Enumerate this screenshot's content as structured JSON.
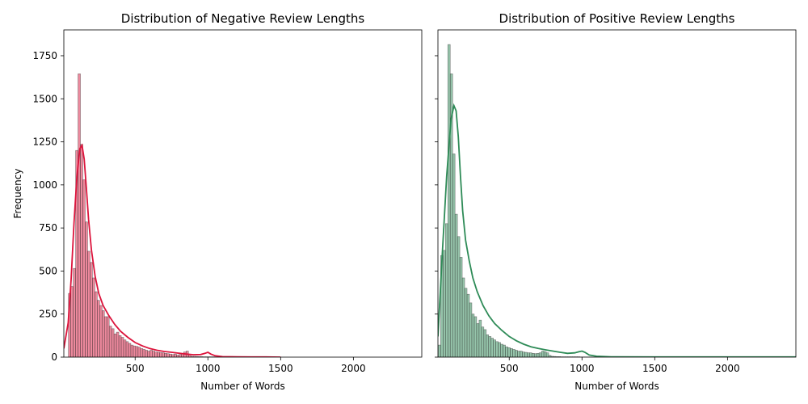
{
  "chart_data": [
    {
      "type": "bar",
      "title": "Distribution of Negative Review Lengths",
      "xlabel": "Number of Words",
      "ylabel": "Frequency",
      "xlim": [
        10,
        2470
      ],
      "ylim": [
        0,
        1900
      ],
      "xticks": [
        500,
        1000,
        1500,
        2000
      ],
      "yticks": [
        0,
        250,
        500,
        750,
        1000,
        1250,
        1500,
        1750
      ],
      "bar_color": "#dc143c",
      "kde_color": "#dc143c",
      "bin_width": 16.5,
      "bins_start": 25,
      "values": [
        0,
        370,
        410,
        515,
        1200,
        1645,
        1235,
        1030,
        785,
        615,
        550,
        460,
        380,
        330,
        300,
        270,
        235,
        235,
        180,
        165,
        135,
        145,
        125,
        115,
        100,
        90,
        80,
        70,
        65,
        62,
        58,
        50,
        45,
        40,
        35,
        40,
        35,
        30,
        28,
        26,
        25,
        22,
        20,
        18,
        15,
        18,
        12,
        15,
        20,
        30,
        35,
        15,
        5,
        5,
        4,
        3,
        3,
        2,
        2,
        2,
        2,
        2,
        2,
        2,
        2,
        1,
        1,
        1,
        1,
        1,
        1,
        1,
        1,
        1,
        1,
        1,
        1,
        1,
        1,
        1,
        1,
        1,
        0,
        0,
        0
      ],
      "kde": {
        "x": [
          10,
          40,
          60,
          80,
          100,
          120,
          135,
          150,
          165,
          180,
          200,
          225,
          250,
          280,
          320,
          360,
          400,
          450,
          500,
          550,
          600,
          650,
          700,
          750,
          800,
          850,
          900,
          950,
          980,
          1000,
          1020,
          1050,
          1100,
          1200,
          1300,
          1400,
          1500
        ],
        "y": [
          50,
          200,
          450,
          780,
          1050,
          1210,
          1230,
          1150,
          980,
          800,
          620,
          470,
          370,
          300,
          240,
          190,
          150,
          115,
          85,
          65,
          50,
          40,
          33,
          28,
          23,
          18,
          14,
          15,
          22,
          28,
          18,
          8,
          3,
          2,
          1,
          1,
          0
        ]
      }
    },
    {
      "type": "bar",
      "title": "Distribution of Positive Review Lengths",
      "xlabel": "Number of Words",
      "ylabel": "",
      "xlim": [
        10,
        2470
      ],
      "ylim": [
        0,
        1900
      ],
      "xticks": [
        500,
        1000,
        1500,
        2000
      ],
      "yticks": [
        0,
        250,
        500,
        750,
        1000,
        1250,
        1500,
        1750
      ],
      "bar_color": "#2e8b57",
      "kde_color": "#2e8b57",
      "bin_width": 16.5,
      "bins_start": 12,
      "values": [
        70,
        590,
        620,
        775,
        1815,
        1645,
        1180,
        830,
        700,
        580,
        460,
        400,
        365,
        315,
        250,
        235,
        195,
        215,
        175,
        160,
        130,
        120,
        110,
        100,
        90,
        85,
        75,
        70,
        60,
        55,
        50,
        45,
        40,
        35,
        35,
        30,
        28,
        25,
        25,
        22,
        20,
        22,
        25,
        35,
        32,
        25,
        10,
        5,
        4,
        3,
        3,
        2,
        2,
        2,
        2,
        2,
        2,
        2,
        2,
        1,
        1,
        1,
        1,
        1,
        1,
        1,
        1,
        1,
        1,
        1,
        1,
        1,
        1,
        1,
        1,
        1,
        1,
        1,
        1,
        1,
        1,
        1,
        1,
        1,
        1,
        1,
        1,
        1,
        1,
        1,
        1,
        1,
        1,
        1,
        1,
        1,
        1,
        1,
        1,
        1,
        1,
        1,
        1,
        1,
        1,
        1,
        1,
        1,
        1,
        1,
        1,
        1,
        1,
        1,
        1,
        1,
        1,
        1,
        1,
        1,
        1,
        1,
        1,
        1,
        1,
        1,
        1,
        1,
        1,
        1,
        1,
        1,
        1,
        1,
        1,
        1,
        1,
        1,
        1,
        1,
        1,
        1,
        1,
        1,
        1,
        1,
        1,
        1
      ],
      "kde": {
        "x": [
          10,
          40,
          70,
          100,
          120,
          135,
          150,
          165,
          180,
          200,
          225,
          250,
          280,
          320,
          360,
          400,
          450,
          500,
          550,
          600,
          650,
          700,
          750,
          800,
          850,
          900,
          950,
          980,
          1000,
          1020,
          1050,
          1100,
          1200,
          1500,
          2000,
          2470
        ],
        "y": [
          120,
          600,
          1050,
          1380,
          1460,
          1430,
          1280,
          1050,
          850,
          680,
          560,
          460,
          380,
          300,
          240,
          195,
          155,
          120,
          95,
          75,
          60,
          50,
          42,
          35,
          28,
          22,
          25,
          32,
          35,
          28,
          12,
          5,
          2,
          1,
          1,
          1
        ]
      }
    }
  ]
}
